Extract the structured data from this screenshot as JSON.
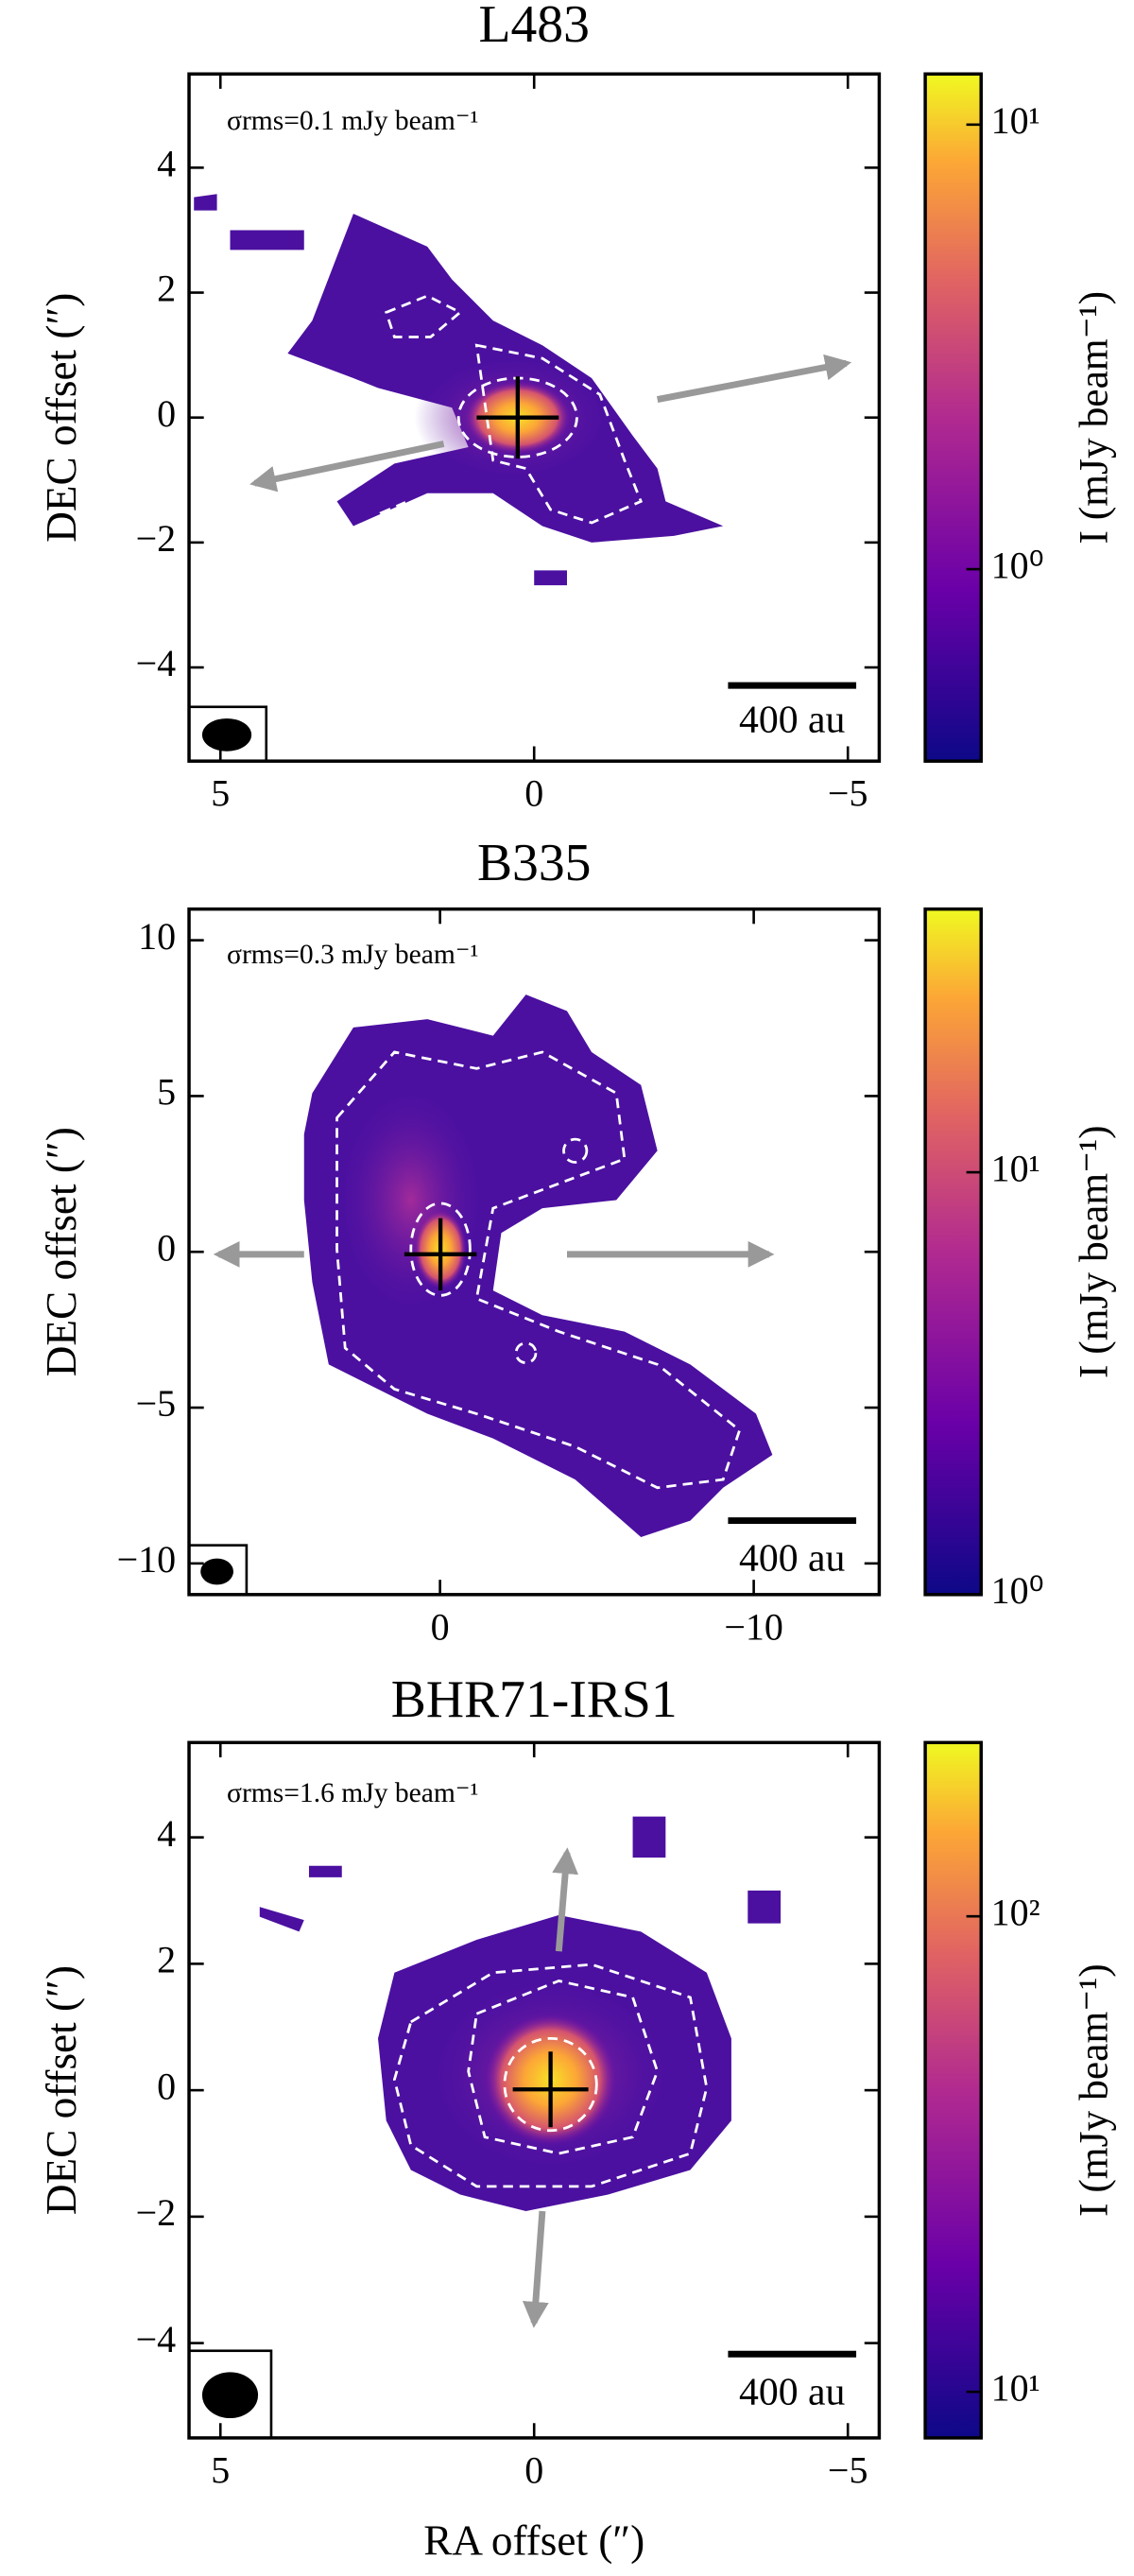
{
  "chart_data": [
    {
      "type": "image",
      "title": "L483",
      "annotation": "σrms=0.1 mJy beam⁻¹",
      "scale_bar_label": "400 au",
      "ylabel": "DEC offset (″)",
      "xlim": [
        5.5,
        -5.5
      ],
      "ylim": [
        -5.5,
        5.5
      ],
      "xticks": [
        5,
        0,
        {
          "value": -5,
          "label": "−5"
        }
      ],
      "yticks": [
        {
          "value": -4,
          "label": "−4"
        },
        {
          "value": -2,
          "label": "−2"
        },
        0,
        2,
        4
      ],
      "colorbar": {
        "label": "I (mJy beam⁻¹)",
        "log": true,
        "lim": [
          0.37,
          13
        ],
        "ticks": [
          {
            "value": 1,
            "label": "10⁰"
          },
          {
            "value": 10,
            "label": "10¹"
          }
        ]
      }
    },
    {
      "type": "image",
      "title": "B335",
      "annotation": "σrms=0.3 mJy beam⁻¹",
      "scale_bar_label": "400 au",
      "ylabel": "DEC offset (″)",
      "xlim": [
        8,
        -14
      ],
      "ylim": [
        -11,
        11
      ],
      "xticks": [
        0,
        {
          "value": -10,
          "label": "−10"
        }
      ],
      "yticks": [
        {
          "value": -10,
          "label": "−10"
        },
        {
          "value": -5,
          "label": "−5"
        },
        0,
        5,
        10
      ],
      "colorbar": {
        "label": "I (mJy beam⁻¹)",
        "log": true,
        "lim": [
          1,
          42
        ],
        "ticks": [
          {
            "value": 1,
            "label": "10⁰"
          },
          {
            "value": 10,
            "label": "10¹"
          }
        ]
      }
    },
    {
      "type": "image",
      "title": "BHR71-IRS1",
      "annotation": "σrms=1.6 mJy beam⁻¹",
      "scale_bar_label": "400 au",
      "ylabel": "DEC offset (″)",
      "xlabel": "RA offset (″)",
      "xlim": [
        5.5,
        -5.5
      ],
      "ylim": [
        -5.5,
        5.5
      ],
      "xticks": [
        5,
        0,
        {
          "value": -5,
          "label": "−5"
        }
      ],
      "yticks": [
        {
          "value": -4,
          "label": "−4"
        },
        {
          "value": -2,
          "label": "−2"
        },
        0,
        2,
        4
      ],
      "colorbar": {
        "label": "I (mJy beam⁻¹)",
        "log": true,
        "lim": [
          8,
          232
        ],
        "ticks": [
          {
            "value": 10,
            "label": "10¹"
          },
          {
            "value": 100,
            "label": "10²"
          }
        ]
      }
    }
  ]
}
